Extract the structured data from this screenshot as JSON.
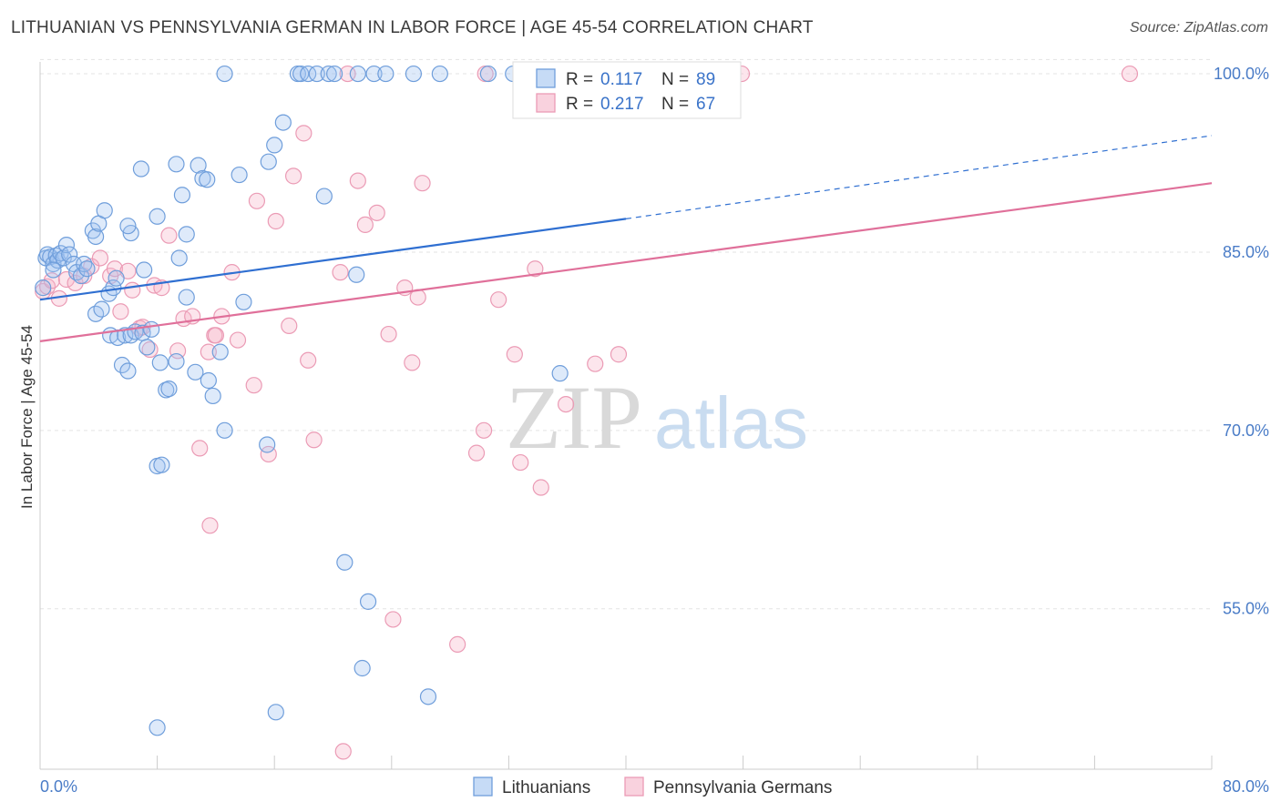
{
  "title": "LITHUANIAN VS PENNSYLVANIA GERMAN IN LABOR FORCE | AGE 45-54 CORRELATION CHART",
  "source": "Source: ZipAtlas.com",
  "watermark": {
    "zip": "ZIP",
    "atlas": "atlas"
  },
  "colors": {
    "blue": "#4a7cc7",
    "blue_fill": "rgba(160,195,240,0.35)",
    "blue_stroke": "#6f9edb",
    "blue_line": "#2f6fd1",
    "pink_fill": "rgba(245,180,200,0.35)",
    "pink_stroke": "#eb9bb5",
    "pink_line": "#e0709a",
    "grid": "#e3e3e3"
  },
  "legend": {
    "rows": [
      {
        "r_label": "R =",
        "r_value": "0.117",
        "n_label": "N =",
        "n_value": "89"
      },
      {
        "r_label": "R =",
        "r_value": "0.217",
        "n_label": "N =",
        "n_value": "67"
      }
    ]
  },
  "chart_data": {
    "type": "scatter",
    "title": "LITHUANIAN VS PENNSYLVANIA GERMAN IN LABOR FORCE | AGE 45-54 CORRELATION CHART",
    "xlabel": "",
    "ylabel": "In Labor Force | Age 45-54",
    "xlim": [
      0,
      80
    ],
    "ylim": [
      41.5,
      101
    ],
    "x_tick_labels": [
      "0.0%",
      "80.0%"
    ],
    "y_ticks": [
      55,
      70,
      85,
      100
    ],
    "y_tick_labels": [
      "55.0%",
      "70.0%",
      "85.0%",
      "100.0%"
    ],
    "grid": true,
    "legend_placement": "top-center",
    "series": [
      {
        "name": "Lithuanians",
        "r": 0.117,
        "n": 89,
        "trend": {
          "x0": 0,
          "y0": 81.0,
          "x1": 40,
          "y1": 87.8,
          "dashed_to_x": 80,
          "dashed_to_y": 94.8
        },
        "points": [
          [
            0.2,
            82.0
          ],
          [
            0.4,
            84.5
          ],
          [
            0.5,
            84.8
          ],
          [
            0.7,
            84.6
          ],
          [
            0.9,
            84.0
          ],
          [
            1.1,
            84.7
          ],
          [
            1.2,
            84.3
          ],
          [
            1.4,
            84.9
          ],
          [
            1.6,
            84.5
          ],
          [
            1.8,
            85.6
          ],
          [
            2.0,
            84.8
          ],
          [
            2.3,
            84.0
          ],
          [
            2.5,
            83.3
          ],
          [
            2.8,
            83.0
          ],
          [
            3.0,
            84.0
          ],
          [
            3.2,
            83.6
          ],
          [
            3.6,
            86.8
          ],
          [
            3.8,
            86.3
          ],
          [
            4.0,
            87.4
          ],
          [
            4.4,
            88.5
          ],
          [
            4.7,
            81.5
          ],
          [
            5.0,
            82.0
          ],
          [
            5.2,
            82.8
          ],
          [
            3.8,
            79.8
          ],
          [
            4.2,
            80.2
          ],
          [
            4.8,
            78.0
          ],
          [
            5.3,
            77.8
          ],
          [
            5.8,
            78.0
          ],
          [
            6.2,
            78.0
          ],
          [
            5.6,
            75.5
          ],
          [
            6.0,
            75.0
          ],
          [
            6.5,
            78.3
          ],
          [
            7.0,
            78.2
          ],
          [
            7.3,
            77.0
          ],
          [
            7.6,
            78.5
          ],
          [
            8.2,
            75.7
          ],
          [
            8.6,
            73.4
          ],
          [
            8.8,
            73.5
          ],
          [
            9.3,
            75.8
          ],
          [
            10.0,
            81.2
          ],
          [
            10.6,
            74.9
          ],
          [
            11.5,
            74.2
          ],
          [
            11.8,
            72.9
          ],
          [
            12.3,
            76.6
          ],
          [
            12.6,
            70.0
          ],
          [
            13.9,
            80.8
          ],
          [
            15.5,
            68.8
          ],
          [
            9.5,
            84.5
          ],
          [
            7.1,
            83.5
          ],
          [
            6.2,
            86.6
          ],
          [
            6.0,
            87.2
          ],
          [
            8.0,
            88.0
          ],
          [
            9.7,
            89.8
          ],
          [
            10.0,
            86.5
          ],
          [
            9.3,
            92.4
          ],
          [
            10.8,
            92.3
          ],
          [
            11.1,
            91.2
          ],
          [
            11.4,
            91.1
          ],
          [
            13.6,
            91.5
          ],
          [
            15.6,
            92.6
          ],
          [
            16.0,
            94.0
          ],
          [
            16.6,
            95.9
          ],
          [
            8.0,
            67.0
          ],
          [
            8.3,
            67.1
          ],
          [
            6.9,
            92.0
          ],
          [
            19.4,
            89.7
          ],
          [
            21.6,
            83.1
          ],
          [
            20.8,
            58.9
          ],
          [
            22.4,
            55.6
          ],
          [
            22.0,
            50.0
          ],
          [
            26.5,
            47.6
          ],
          [
            16.1,
            46.3
          ],
          [
            8.0,
            45.0
          ],
          [
            12.6,
            100.0
          ],
          [
            17.6,
            100.0
          ],
          [
            17.8,
            100.0
          ],
          [
            18.3,
            100.0
          ],
          [
            18.9,
            100.0
          ],
          [
            19.7,
            100.0
          ],
          [
            20.1,
            100.0
          ],
          [
            21.7,
            100.0
          ],
          [
            22.8,
            100.0
          ],
          [
            23.6,
            100.0
          ],
          [
            25.5,
            100.0
          ],
          [
            27.3,
            100.0
          ],
          [
            30.6,
            100.0
          ],
          [
            32.3,
            100.0
          ],
          [
            35.5,
            74.8
          ],
          [
            0.9,
            83.5
          ]
        ]
      },
      {
        "name": "Pennsylvania Germans",
        "r": 0.217,
        "n": 67,
        "trend": {
          "x0": 0,
          "y0": 77.5,
          "x1": 80,
          "y1": 90.8
        },
        "points": [
          [
            0.2,
            81.7
          ],
          [
            0.5,
            82.1
          ],
          [
            0.8,
            82.6
          ],
          [
            1.3,
            81.1
          ],
          [
            1.8,
            82.7
          ],
          [
            2.4,
            82.4
          ],
          [
            3.0,
            83.0
          ],
          [
            3.5,
            83.8
          ],
          [
            4.1,
            84.5
          ],
          [
            4.8,
            83.0
          ],
          [
            5.1,
            83.6
          ],
          [
            5.5,
            80.0
          ],
          [
            6.0,
            83.4
          ],
          [
            6.3,
            81.8
          ],
          [
            6.8,
            78.6
          ],
          [
            7.0,
            78.7
          ],
          [
            7.5,
            76.8
          ],
          [
            7.8,
            82.2
          ],
          [
            8.3,
            82.0
          ],
          [
            8.8,
            86.4
          ],
          [
            9.4,
            76.7
          ],
          [
            9.8,
            79.4
          ],
          [
            10.4,
            79.6
          ],
          [
            10.9,
            68.5
          ],
          [
            11.5,
            76.6
          ],
          [
            11.9,
            78.0
          ],
          [
            12.0,
            78.0
          ],
          [
            12.4,
            79.6
          ],
          [
            13.1,
            83.3
          ],
          [
            13.5,
            77.6
          ],
          [
            14.6,
            73.8
          ],
          [
            14.8,
            89.3
          ],
          [
            15.6,
            68.0
          ],
          [
            16.1,
            87.6
          ],
          [
            17.0,
            78.8
          ],
          [
            17.3,
            91.4
          ],
          [
            18.0,
            95.0
          ],
          [
            18.3,
            75.9
          ],
          [
            18.7,
            69.2
          ],
          [
            20.5,
            83.3
          ],
          [
            21.7,
            91.0
          ],
          [
            22.2,
            87.3
          ],
          [
            23.0,
            88.3
          ],
          [
            23.8,
            78.1
          ],
          [
            24.9,
            82.0
          ],
          [
            25.4,
            75.7
          ],
          [
            25.8,
            81.2
          ],
          [
            26.1,
            90.8
          ],
          [
            28.5,
            52.0
          ],
          [
            29.8,
            68.1
          ],
          [
            30.3,
            70.0
          ],
          [
            31.3,
            81.0
          ],
          [
            32.4,
            76.4
          ],
          [
            32.8,
            67.3
          ],
          [
            33.8,
            83.6
          ],
          [
            34.2,
            65.2
          ],
          [
            35.9,
            72.2
          ],
          [
            37.9,
            75.6
          ],
          [
            39.5,
            76.4
          ],
          [
            11.6,
            62.0
          ],
          [
            24.1,
            54.1
          ],
          [
            20.7,
            43.0
          ],
          [
            21.0,
            100.0
          ],
          [
            30.4,
            100.0
          ],
          [
            47.0,
            100.0
          ],
          [
            47.9,
            100.0
          ],
          [
            74.4,
            100.0
          ]
        ]
      }
    ]
  },
  "bottom_legend": [
    {
      "label": "Lithuanians"
    },
    {
      "label": "Pennsylvania Germans"
    }
  ]
}
